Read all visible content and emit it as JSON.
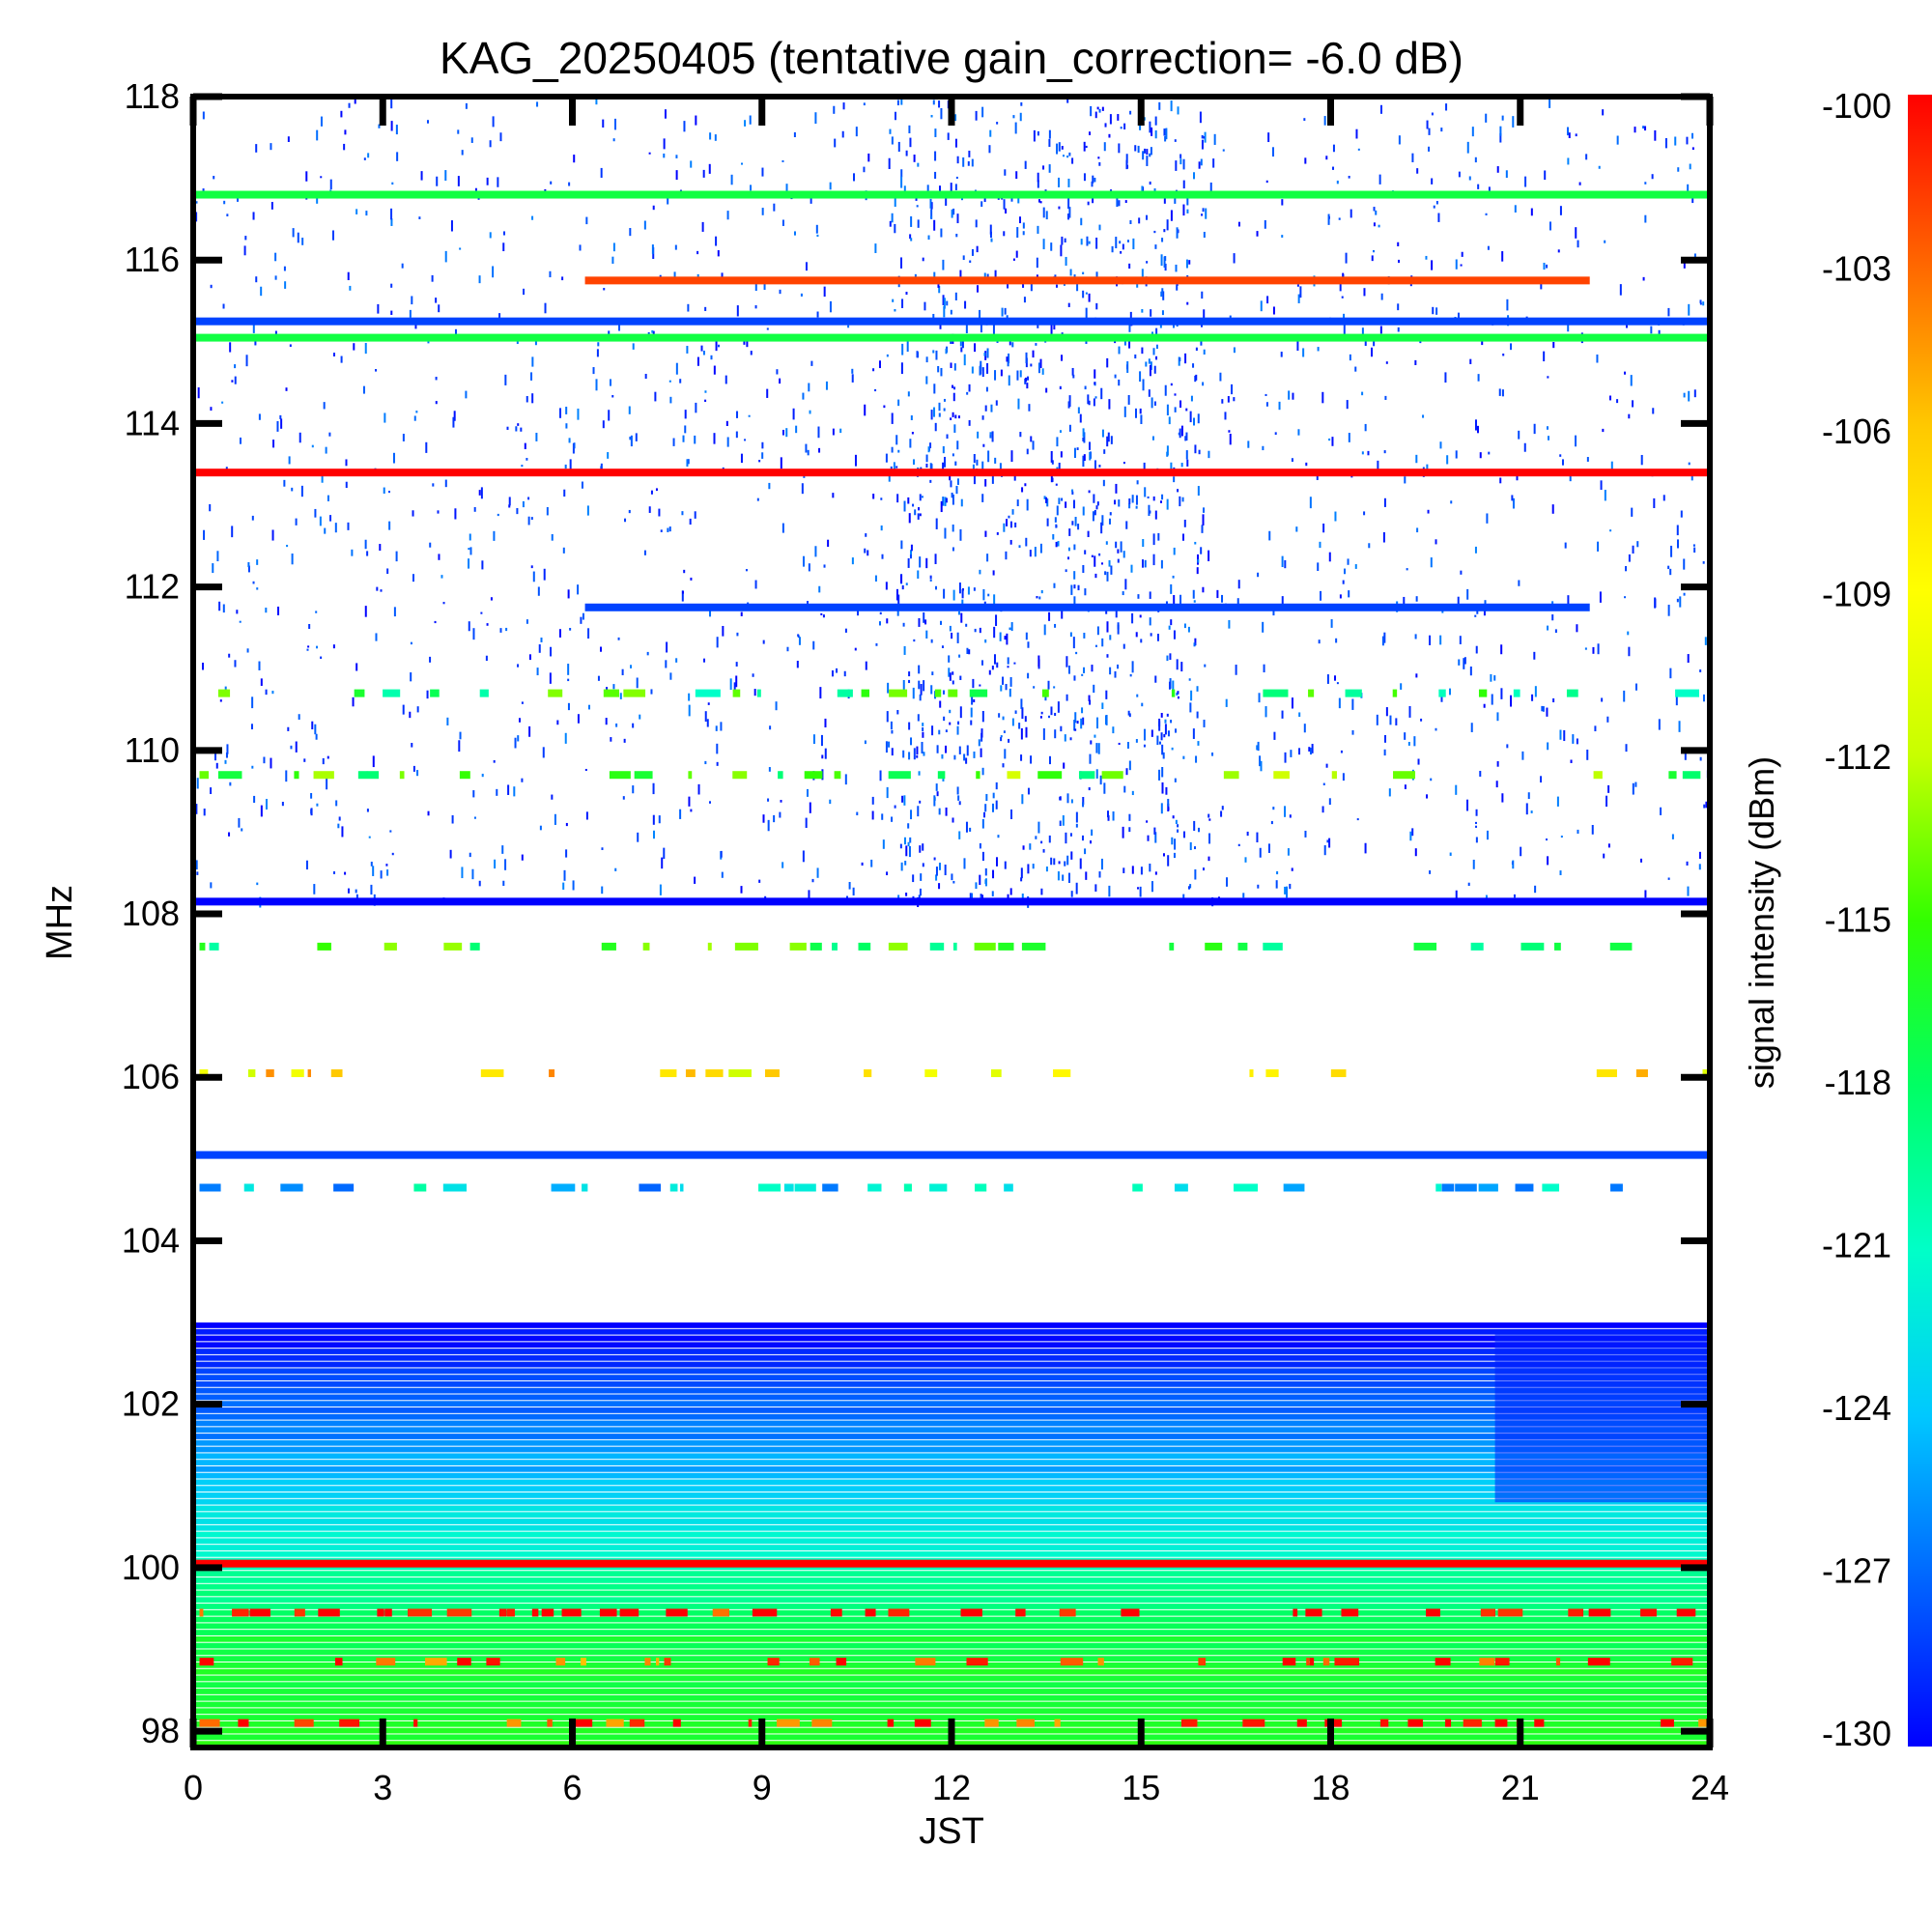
{
  "chart_data": {
    "type": "heatmap",
    "title": "KAG_20250405 (tentative gain_correction= -6.0 dB)",
    "xlabel": "JST",
    "ylabel": "MHz",
    "colorbar_label": "signal intensity (dBm)",
    "x_range": [
      0,
      24
    ],
    "y_range": [
      97.8,
      118
    ],
    "color_range": [
      -130,
      -100
    ],
    "x_ticks": [
      "0",
      "3",
      "6",
      "9",
      "12",
      "15",
      "18",
      "21",
      "24"
    ],
    "y_ticks": [
      "98",
      "100",
      "102",
      "104",
      "106",
      "108",
      "110",
      "112",
      "114",
      "116",
      "118"
    ],
    "colorbar_ticks": [
      "-100",
      "-103",
      "-106",
      "-109",
      "-112",
      "-115",
      "-118",
      "-121",
      "-124",
      "-127",
      "-130"
    ],
    "colormap": [
      "#0000ff",
      "#0064ff",
      "#00c8ff",
      "#00ffc8",
      "#00ff64",
      "#32ff00",
      "#c8ff00",
      "#ffff00",
      "#ffc800",
      "#ff6400",
      "#ff0000"
    ],
    "continuous_bands": [
      {
        "freq_mhz": 116.8,
        "start_jst": 0,
        "end_jst": 24,
        "dbm": -117
      },
      {
        "freq_mhz": 115.75,
        "start_jst": 6.2,
        "end_jst": 22.1,
        "dbm": -102
      },
      {
        "freq_mhz": 115.25,
        "start_jst": 0,
        "end_jst": 24,
        "dbm": -128
      },
      {
        "freq_mhz": 115.05,
        "start_jst": 0,
        "end_jst": 24,
        "dbm": -117
      },
      {
        "freq_mhz": 113.4,
        "start_jst": 0,
        "end_jst": 24,
        "dbm": -100
      },
      {
        "freq_mhz": 111.75,
        "start_jst": 6.2,
        "end_jst": 22.1,
        "dbm": -128
      },
      {
        "freq_mhz": 108.15,
        "start_jst": 0,
        "end_jst": 24,
        "dbm": -130
      },
      {
        "freq_mhz": 105.05,
        "start_jst": 0,
        "end_jst": 24,
        "dbm": -128
      },
      {
        "freq_mhz": 100.05,
        "start_jst": 0,
        "end_jst": 24,
        "dbm": -100
      }
    ],
    "intermittent_bands": [
      {
        "freq_mhz": 110.7,
        "dbm": -117
      },
      {
        "freq_mhz": 109.7,
        "dbm": -115
      },
      {
        "freq_mhz": 107.6,
        "dbm": -116
      },
      {
        "freq_mhz": 106.05,
        "dbm": -108
      },
      {
        "freq_mhz": 104.65,
        "dbm": -123
      },
      {
        "freq_mhz": 99.45,
        "dbm": -100
      },
      {
        "freq_mhz": 98.85,
        "dbm": -102
      },
      {
        "freq_mhz": 98.1,
        "dbm": -101
      }
    ],
    "background_profile": [
      {
        "freq_mhz": 103.0,
        "dbm": -130
      },
      {
        "freq_mhz": 102.0,
        "dbm": -127
      },
      {
        "freq_mhz": 101.0,
        "dbm": -124
      },
      {
        "freq_mhz": 100.2,
        "dbm": -121
      },
      {
        "freq_mhz": 99.2,
        "dbm": -117
      },
      {
        "freq_mhz": 97.8,
        "dbm": -116
      }
    ],
    "activity_peak_jst": [
      11,
      16
    ],
    "grid": false
  }
}
